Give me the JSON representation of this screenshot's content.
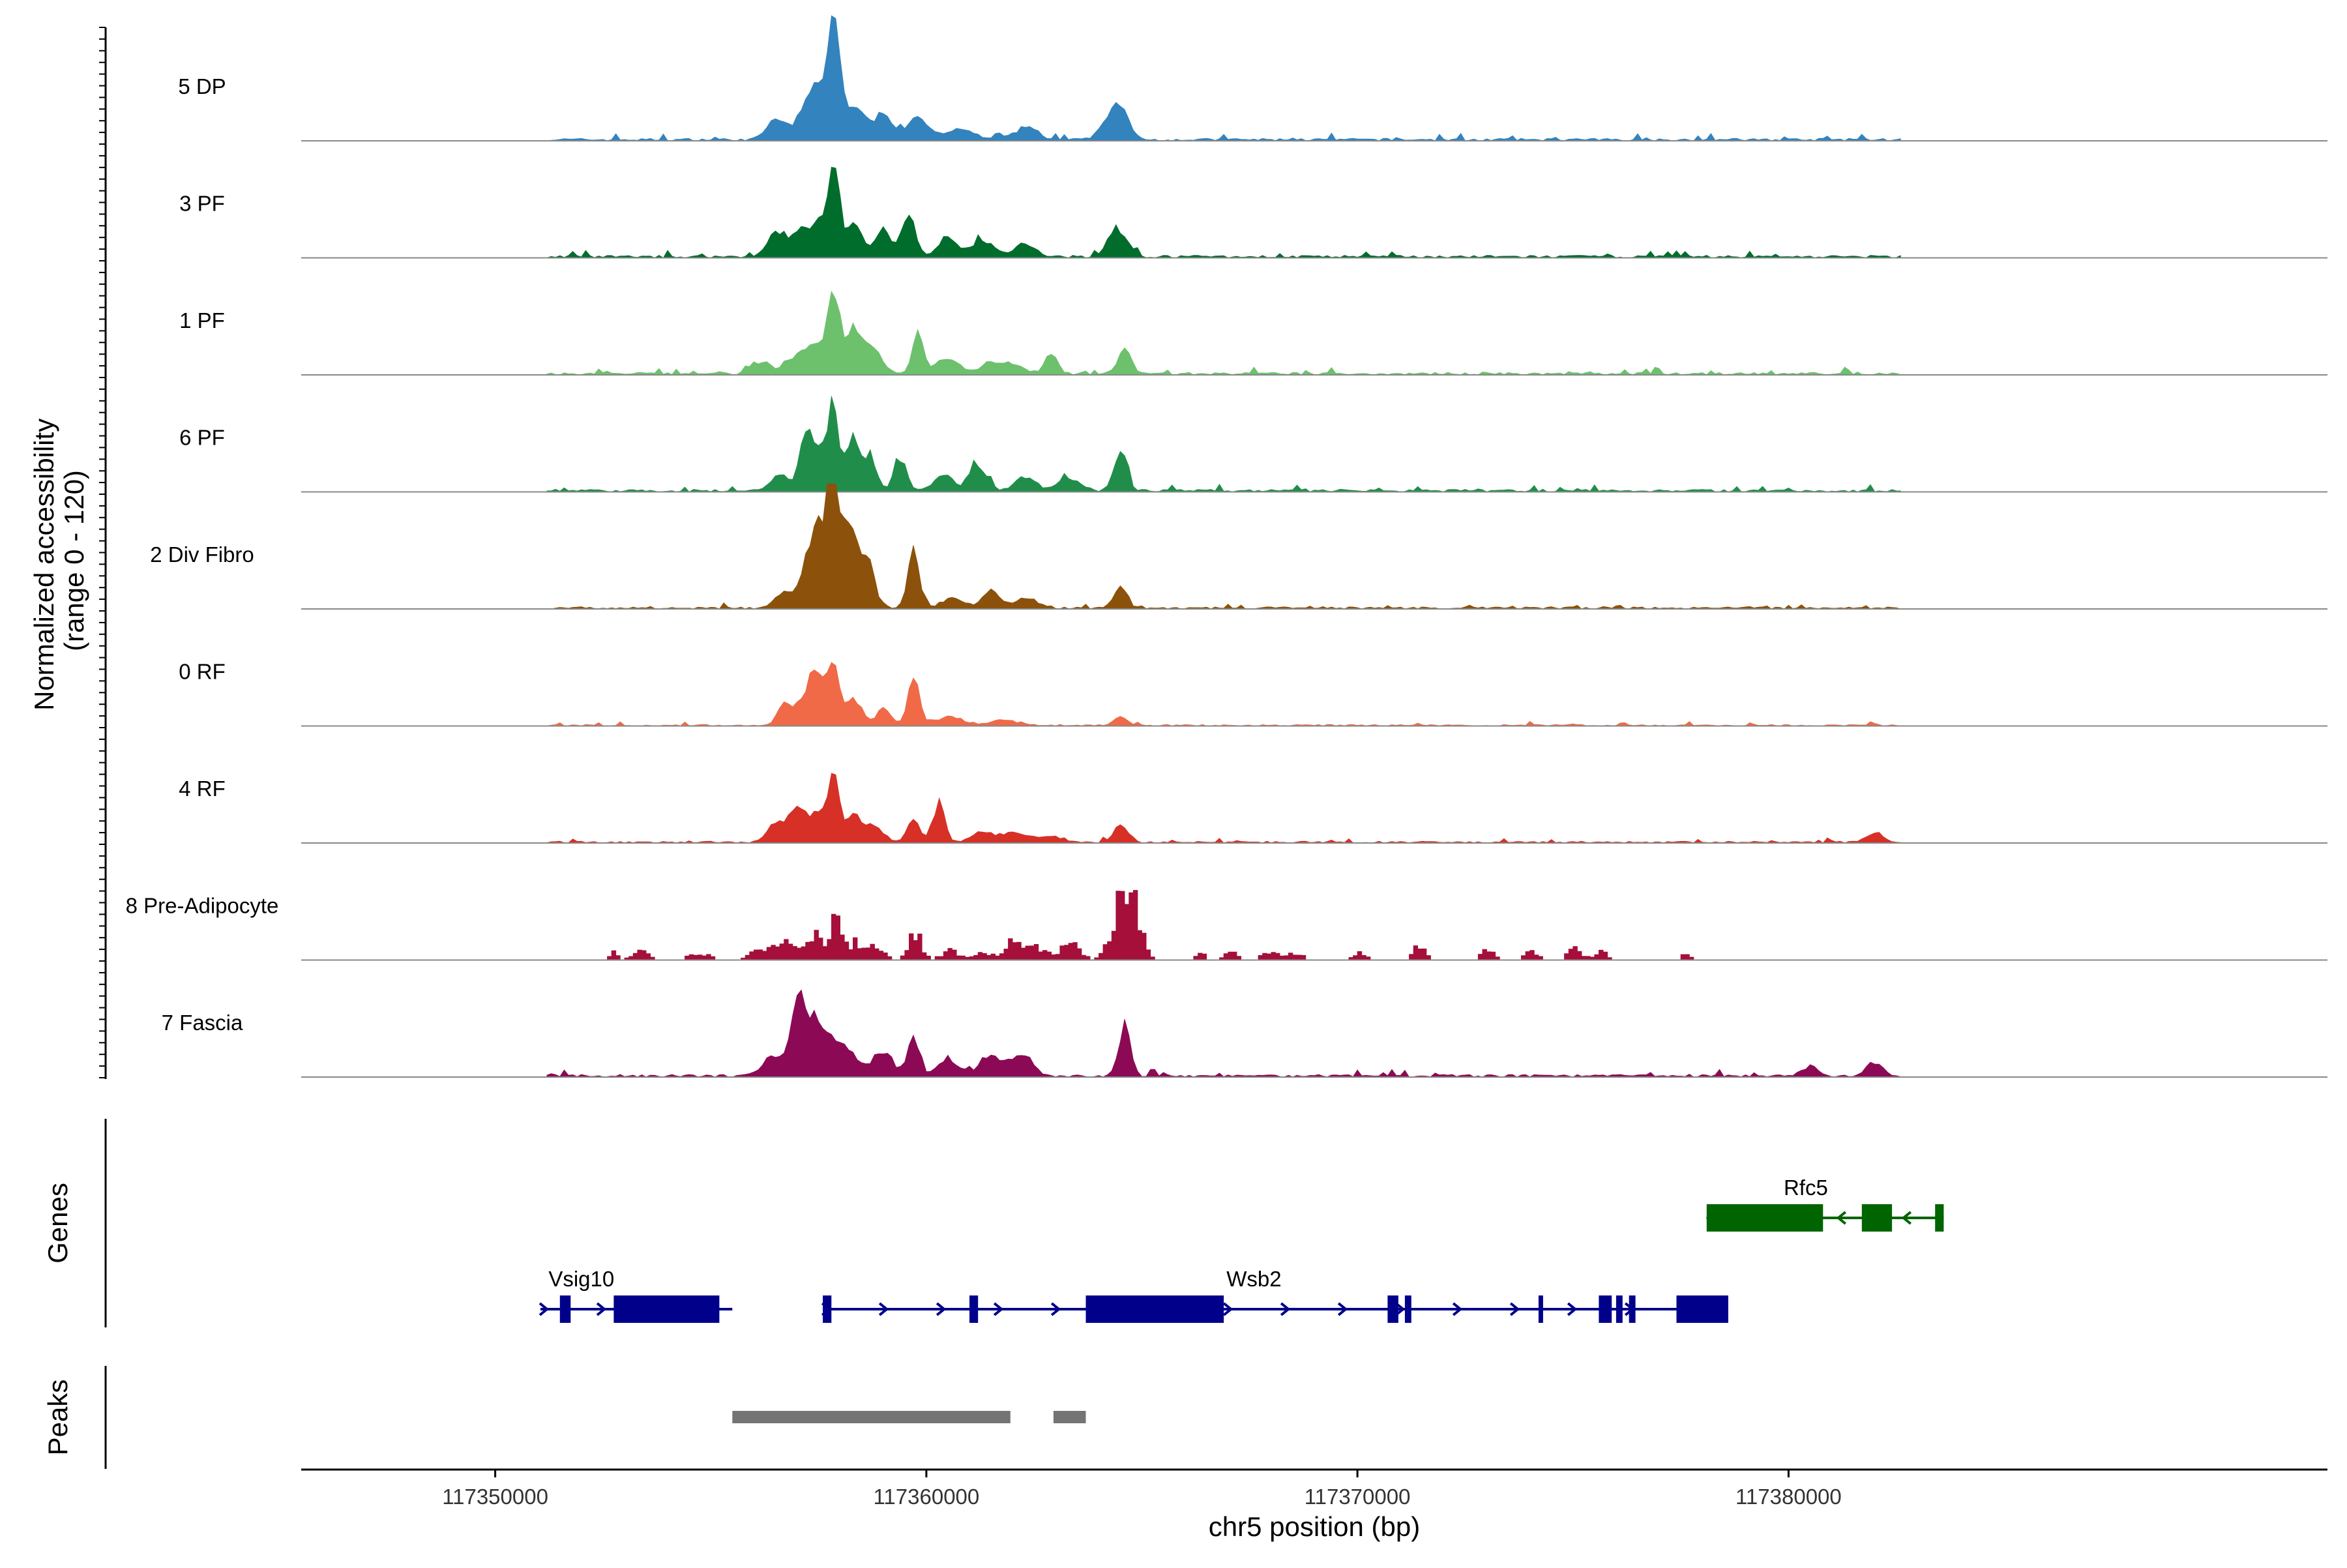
{
  "chart_data": {
    "type": "area",
    "title": "",
    "chromosome": "chr5",
    "xlabel": "chr5 position (bp)",
    "xlim": [
      117345500,
      117392500
    ],
    "x_ticks": [
      117350000,
      117360000,
      117370000,
      117380000
    ],
    "x_tick_labels": [
      "117350000",
      "117360000",
      "117370000",
      "117380000"
    ],
    "coverage_ylabel_line1": "Normalized accessibility",
    "coverage_ylabel_line2": "(range 0 - 120)",
    "ylim": [
      0,
      120
    ],
    "coverage_start": 117351200,
    "coverage_end": 117382600,
    "bin_size": 100,
    "tracks": [
      {
        "name": "5 DP",
        "color": "#3383BE",
        "mode": "smooth",
        "bg": 2.5,
        "peaks": [
          [
            117356500,
            20,
            200
          ],
          [
            117357200,
            25,
            250
          ],
          [
            117357600,
            45,
            250
          ],
          [
            117357850,
            85,
            120
          ],
          [
            117358300,
            35,
            250
          ],
          [
            117359000,
            25,
            200
          ],
          [
            117359800,
            20,
            250
          ],
          [
            117360800,
            10,
            300
          ],
          [
            117362300,
            12,
            250
          ],
          [
            117364200,
            15,
            200
          ],
          [
            117364500,
            28,
            200
          ]
        ]
      },
      {
        "name": "3 PF",
        "color": "#006D2C",
        "mode": "smooth",
        "bg": 2.5,
        "peaks": [
          [
            117356500,
            20,
            200
          ],
          [
            117357000,
            18,
            250
          ],
          [
            117357500,
            30,
            250
          ],
          [
            117357850,
            80,
            120
          ],
          [
            117358300,
            30,
            200
          ],
          [
            117359000,
            25,
            200
          ],
          [
            117359600,
            40,
            150
          ],
          [
            117360500,
            20,
            200
          ],
          [
            117361300,
            15,
            250
          ],
          [
            117362300,
            12,
            250
          ],
          [
            117364300,
            20,
            150
          ],
          [
            117364600,
            18,
            150
          ]
        ]
      },
      {
        "name": "1 PF",
        "color": "#6DC16D",
        "mode": "smooth",
        "bg": 2.5,
        "peaks": [
          [
            117356200,
            12,
            200
          ],
          [
            117357000,
            15,
            250
          ],
          [
            117357500,
            25,
            250
          ],
          [
            117357850,
            72,
            120
          ],
          [
            117358300,
            45,
            200
          ],
          [
            117358800,
            20,
            200
          ],
          [
            117359800,
            40,
            130
          ],
          [
            117360500,
            15,
            250
          ],
          [
            117361500,
            10,
            250
          ],
          [
            117362000,
            8,
            250
          ],
          [
            117362900,
            20,
            150
          ],
          [
            117364600,
            25,
            150
          ]
        ]
      },
      {
        "name": "6 PF",
        "color": "#208E4A",
        "mode": "smooth",
        "bg": 2.5,
        "peaks": [
          [
            117356600,
            15,
            200
          ],
          [
            117357200,
            45,
            150
          ],
          [
            117357500,
            35,
            200
          ],
          [
            117357850,
            80,
            120
          ],
          [
            117358300,
            55,
            150
          ],
          [
            117358700,
            35,
            150
          ],
          [
            117359400,
            30,
            150
          ],
          [
            117360400,
            15,
            200
          ],
          [
            117361200,
            25,
            200
          ],
          [
            117362300,
            12,
            250
          ],
          [
            117363300,
            12,
            250
          ],
          [
            117364500,
            40,
            150
          ]
        ]
      },
      {
        "name": "2 Div Fibro",
        "color": "#8C510A",
        "mode": "smooth",
        "bg": 2.0,
        "peaks": [
          [
            117356700,
            15,
            200
          ],
          [
            117357300,
            45,
            200
          ],
          [
            117357600,
            55,
            200
          ],
          [
            117357850,
            100,
            130
          ],
          [
            117358200,
            70,
            200
          ],
          [
            117358600,
            40,
            200
          ],
          [
            117359700,
            55,
            130
          ],
          [
            117360600,
            10,
            250
          ],
          [
            117361500,
            18,
            200
          ],
          [
            117362300,
            10,
            250
          ],
          [
            117364500,
            20,
            150
          ]
        ]
      },
      {
        "name": "0 RF",
        "color": "#F06A48",
        "mode": "smooth",
        "bg": 1.5,
        "peaks": [
          [
            117356700,
            20,
            150
          ],
          [
            117357200,
            30,
            200
          ],
          [
            117357500,
            45,
            150
          ],
          [
            117357850,
            60,
            120
          ],
          [
            117358300,
            25,
            200
          ],
          [
            117359000,
            18,
            150
          ],
          [
            117359700,
            50,
            130
          ],
          [
            117360500,
            8,
            300
          ],
          [
            117361800,
            5,
            300
          ],
          [
            117364500,
            8,
            150
          ]
        ]
      },
      {
        "name": "4 RF",
        "color": "#D73027",
        "mode": "smooth",
        "bg": 1.8,
        "peaks": [
          [
            117356500,
            18,
            200
          ],
          [
            117357000,
            30,
            200
          ],
          [
            117357500,
            28,
            200
          ],
          [
            117357850,
            58,
            120
          ],
          [
            117358300,
            25,
            200
          ],
          [
            117358800,
            15,
            200
          ],
          [
            117359700,
            22,
            150
          ],
          [
            117360300,
            38,
            130
          ],
          [
            117361300,
            10,
            250
          ],
          [
            117362000,
            10,
            250
          ],
          [
            117362800,
            6,
            300
          ],
          [
            117364500,
            18,
            150
          ],
          [
            117382000,
            8,
            200
          ]
        ]
      },
      {
        "name": "8 Pre-Adipocyte",
        "color": "#A50F3A",
        "mode": "blocky",
        "bg": 0,
        "peaks": [
          [
            117352700,
            8,
            100
          ],
          [
            117353300,
            10,
            200
          ],
          [
            117354700,
            6,
            300
          ],
          [
            117356000,
            10,
            200
          ],
          [
            117356600,
            18,
            250
          ],
          [
            117357300,
            28,
            250
          ],
          [
            117357850,
            50,
            120
          ],
          [
            117358300,
            18,
            200
          ],
          [
            117358800,
            15,
            200
          ],
          [
            117359700,
            30,
            150
          ],
          [
            117360500,
            10,
            200
          ],
          [
            117361200,
            8,
            200
          ],
          [
            117362000,
            20,
            250
          ],
          [
            117362600,
            12,
            200
          ],
          [
            117363300,
            20,
            200
          ],
          [
            117364500,
            58,
            250
          ],
          [
            117364800,
            30,
            200
          ],
          [
            117366300,
            10,
            100
          ],
          [
            117367000,
            10,
            150
          ],
          [
            117367900,
            8,
            200
          ],
          [
            117368500,
            8,
            200
          ],
          [
            117370000,
            8,
            150
          ],
          [
            117371400,
            18,
            150
          ],
          [
            117373000,
            12,
            150
          ],
          [
            117374000,
            10,
            150
          ],
          [
            117375000,
            15,
            150
          ],
          [
            117375600,
            10,
            150
          ],
          [
            117377600,
            6,
            150
          ]
        ]
      },
      {
        "name": "7 Fascia",
        "color": "#8C0A55",
        "mode": "smooth",
        "bg": 2.5,
        "peaks": [
          [
            117356500,
            20,
            250
          ],
          [
            117357000,
            60,
            150
          ],
          [
            117357300,
            45,
            200
          ],
          [
            117357700,
            35,
            250
          ],
          [
            117358200,
            22,
            250
          ],
          [
            117359000,
            20,
            250
          ],
          [
            117359700,
            35,
            130
          ],
          [
            117360500,
            15,
            250
          ],
          [
            117361500,
            18,
            250
          ],
          [
            117362200,
            20,
            250
          ],
          [
            117364600,
            50,
            130
          ],
          [
            117380500,
            8,
            200
          ],
          [
            117382000,
            12,
            200
          ]
        ]
      }
    ],
    "genes_panel_label": "Genes",
    "genes": [
      {
        "name": "Vsig10",
        "strand": "+",
        "color": "#00008B",
        "row": 2,
        "start": 117351050,
        "end": 117355500,
        "exons": [
          [
            117351500,
            117351750
          ],
          [
            117352750,
            117355200
          ]
        ]
      },
      {
        "name": "Wsb2",
        "strand": "+",
        "color": "#00008B",
        "row": 2,
        "start": 117357600,
        "end": 117378600,
        "exons": [
          [
            117357600,
            117357800
          ],
          [
            117361000,
            117361200
          ],
          [
            117363700,
            117366900
          ],
          [
            117370700,
            117370950
          ],
          [
            117371100,
            117371250
          ],
          [
            117374200,
            117374300
          ],
          [
            117375600,
            117375900
          ],
          [
            117376000,
            117376150
          ],
          [
            117376300,
            117376450
          ],
          [
            117377400,
            117378600
          ]
        ]
      },
      {
        "name": "Rfc5",
        "strand": "-",
        "color": "#006400",
        "row": 1,
        "start": 117378100,
        "end": 117383600,
        "exons": [
          [
            117378100,
            117380800
          ],
          [
            117381700,
            117382400
          ],
          [
            117383400,
            117383600
          ]
        ]
      }
    ],
    "peaks_panel_label": "Peaks",
    "called_peaks": [
      [
        117355500,
        117361950
      ],
      [
        117362950,
        117363700
      ]
    ]
  }
}
